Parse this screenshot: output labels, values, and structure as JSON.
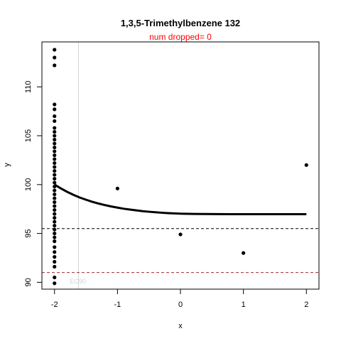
{
  "chart_data": {
    "type": "scatter",
    "title": "1,3,5-Trimethylbenzene 132",
    "subtitle": "num dropped= 0",
    "xlabel": "x",
    "ylabel": "y",
    "xlim": [
      -2.2,
      2.2
    ],
    "ylim": [
      89.3,
      114.6
    ],
    "x_ticks": [
      -2,
      -1,
      0,
      1,
      2
    ],
    "y_ticks": [
      90,
      95,
      100,
      105,
      110
    ],
    "points": [
      {
        "x": -2,
        "y": 113.8
      },
      {
        "x": -2,
        "y": 113.0
      },
      {
        "x": -2,
        "y": 112.2
      },
      {
        "x": -2,
        "y": 108.2
      },
      {
        "x": -2,
        "y": 107.7
      },
      {
        "x": -2,
        "y": 107.0
      },
      {
        "x": -2,
        "y": 106.5
      },
      {
        "x": -2,
        "y": 105.8
      },
      {
        "x": -2,
        "y": 105.4
      },
      {
        "x": -2,
        "y": 105.0
      },
      {
        "x": -2,
        "y": 104.6
      },
      {
        "x": -2,
        "y": 104.2
      },
      {
        "x": -2,
        "y": 103.8
      },
      {
        "x": -2,
        "y": 103.4
      },
      {
        "x": -2,
        "y": 103.0
      },
      {
        "x": -2,
        "y": 102.6
      },
      {
        "x": -2,
        "y": 102.2
      },
      {
        "x": -2,
        "y": 101.8
      },
      {
        "x": -2,
        "y": 101.4
      },
      {
        "x": -2,
        "y": 101.0
      },
      {
        "x": -2,
        "y": 100.6
      },
      {
        "x": -2,
        "y": 100.2
      },
      {
        "x": -2,
        "y": 99.8
      },
      {
        "x": -2,
        "y": 99.4
      },
      {
        "x": -2,
        "y": 99.0
      },
      {
        "x": -2,
        "y": 98.6
      },
      {
        "x": -2,
        "y": 98.2
      },
      {
        "x": -2,
        "y": 97.8
      },
      {
        "x": -2,
        "y": 97.4
      },
      {
        "x": -2,
        "y": 97.0
      },
      {
        "x": -2,
        "y": 96.6
      },
      {
        "x": -2,
        "y": 96.2
      },
      {
        "x": -2,
        "y": 95.8
      },
      {
        "x": -2,
        "y": 95.4
      },
      {
        "x": -2,
        "y": 95.0
      },
      {
        "x": -2,
        "y": 94.6
      },
      {
        "x": -2,
        "y": 94.2
      },
      {
        "x": -2,
        "y": 93.6
      },
      {
        "x": -2,
        "y": 93.1
      },
      {
        "x": -2,
        "y": 92.6
      },
      {
        "x": -2,
        "y": 92.1
      },
      {
        "x": -2,
        "y": 91.6
      },
      {
        "x": -2,
        "y": 90.5
      },
      {
        "x": -2,
        "y": 89.9
      },
      {
        "x": -1,
        "y": 99.6
      },
      {
        "x": 0,
        "y": 94.9
      },
      {
        "x": 1,
        "y": 93.0
      },
      {
        "x": 2,
        "y": 102.0
      }
    ],
    "fit_curve": {
      "x": [
        -2.0,
        -1.9,
        -1.8,
        -1.7,
        -1.6,
        -1.5,
        -1.4,
        -1.3,
        -1.2,
        -1.1,
        -1.0,
        -0.9,
        -0.8,
        -0.7,
        -0.6,
        -0.5,
        -0.4,
        -0.3,
        -0.2,
        -0.1,
        0.0,
        0.2,
        0.4,
        0.6,
        0.8,
        1.0,
        1.2,
        1.4,
        1.6,
        1.8,
        2.0
      ],
      "y": [
        100.0,
        99.61,
        99.26,
        98.95,
        98.68,
        98.45,
        98.24,
        98.06,
        97.9,
        97.76,
        97.64,
        97.53,
        97.44,
        97.36,
        97.28,
        97.22,
        97.17,
        97.12,
        97.08,
        97.05,
        97.02,
        97.0,
        96.99,
        96.98,
        96.97,
        96.97,
        96.97,
        96.97,
        96.97,
        96.97,
        96.97
      ]
    },
    "hlines": [
      {
        "y": 95.5,
        "color": "#000000",
        "style": "dashed"
      },
      {
        "y": 91.0,
        "color": "#a52a2a",
        "style": "dashed"
      }
    ],
    "vline": {
      "x": -1.62,
      "color": "#d3d3d3",
      "label": "EC90"
    },
    "grid": false
  }
}
